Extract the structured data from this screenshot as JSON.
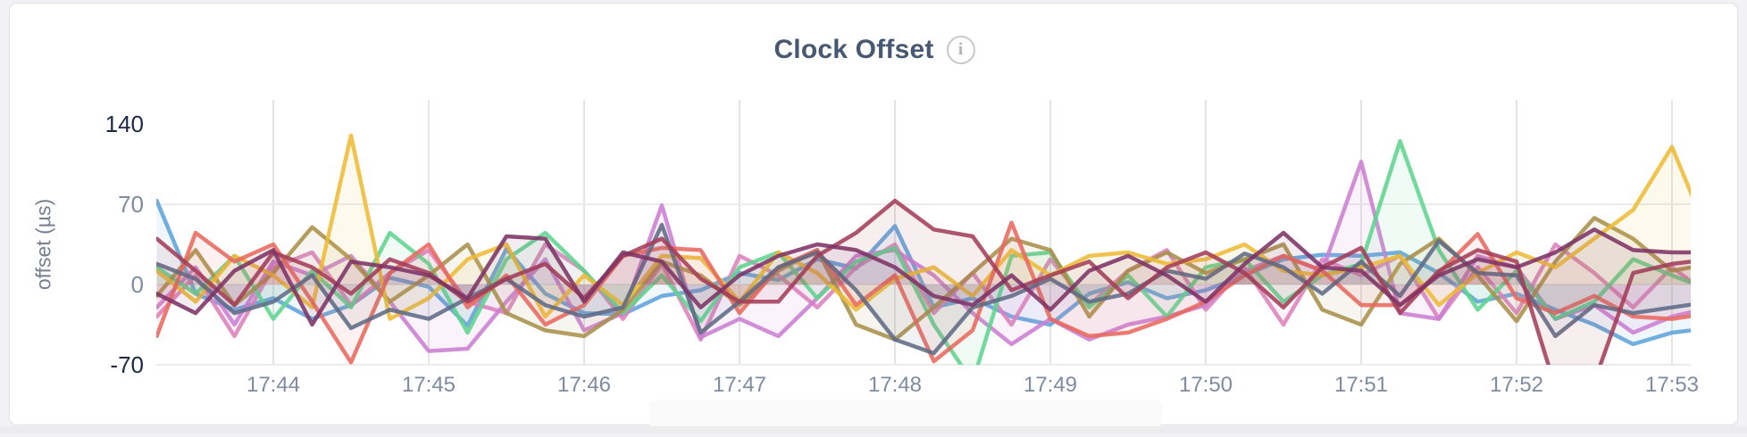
{
  "card": {
    "title": "Clock Offset",
    "info_icon_glyph": "i"
  },
  "chart_data": {
    "type": "line",
    "title": "Clock Offset",
    "xlabel": "",
    "ylabel": "offset (µs)",
    "grid": "on",
    "legend": "none",
    "area_fill": true,
    "ylim": [
      -70,
      140
    ],
    "xlim_minutes": [
      43.25,
      53.25
    ],
    "yticks": [
      {
        "label": "140",
        "value": 140,
        "emphasized": true
      },
      {
        "label": "70",
        "value": 70,
        "emphasized": false
      },
      {
        "label": "0",
        "value": 0,
        "emphasized": false
      },
      {
        "label": "-70",
        "value": -70,
        "emphasized": true
      }
    ],
    "xticks": [
      {
        "label": "17:44",
        "minute": 44
      },
      {
        "label": "17:45",
        "minute": 45
      },
      {
        "label": "17:46",
        "minute": 46
      },
      {
        "label": "17:47",
        "minute": 47
      },
      {
        "label": "17:48",
        "minute": 48
      },
      {
        "label": "17:49",
        "minute": 49
      },
      {
        "label": "17:50",
        "minute": 50
      },
      {
        "label": "17:51",
        "minute": 51
      },
      {
        "label": "17:52",
        "minute": 52
      },
      {
        "label": "17:53",
        "minute": 53
      }
    ],
    "x_minutes": [
      43.25,
      43.5,
      43.75,
      44,
      44.25,
      44.5,
      44.75,
      45,
      45.25,
      45.5,
      45.75,
      46,
      46.25,
      46.5,
      46.75,
      47,
      47.25,
      47.5,
      47.75,
      48,
      48.25,
      48.5,
      48.75,
      49,
      49.25,
      49.5,
      49.75,
      50,
      50.25,
      50.5,
      50.75,
      51,
      51.25,
      51.5,
      51.75,
      52,
      52.25,
      52.5,
      52.75,
      53,
      53.25
    ],
    "series": [
      {
        "name": "blue",
        "color": "#5DA3DC",
        "values": [
          73,
          -8,
          -22,
          -12,
          -30,
          -18,
          6,
          -2,
          -36,
          31,
          -8,
          -25,
          -26,
          -10,
          -5,
          10,
          4,
          22,
          14,
          51,
          -20,
          -12,
          -28,
          -35,
          -8,
          2,
          -12,
          -5,
          8,
          22,
          26,
          25,
          28,
          10,
          -15,
          -8,
          -22,
          -35,
          -52,
          -42,
          -38
        ]
      },
      {
        "name": "violet",
        "color": "#DD82BC",
        "values": [
          -28,
          8,
          -45,
          15,
          28,
          -18,
          10,
          30,
          -15,
          -25,
          35,
          12,
          -30,
          18,
          -48,
          25,
          8,
          -20,
          15,
          35,
          -25,
          10,
          -35,
          22,
          -18,
          12,
          30,
          -22,
          15,
          -35,
          22,
          8,
          25,
          -30,
          15,
          -25,
          35,
          10,
          -20,
          15,
          -10
        ]
      },
      {
        "name": "orchid",
        "color": "#CB7ED1",
        "values": [
          -20,
          15,
          -35,
          20,
          8,
          25,
          -15,
          -58,
          -56,
          -15,
          22,
          -40,
          -25,
          69,
          -46,
          -30,
          -45,
          -12,
          25,
          30,
          8,
          -25,
          -52,
          -30,
          -48,
          -35,
          -28,
          -18,
          12,
          25,
          12,
          107,
          -25,
          -30,
          25,
          15,
          -30,
          -18,
          -42,
          -28,
          -20
        ]
      },
      {
        "name": "green",
        "color": "#5FD48E",
        "values": [
          15,
          -8,
          25,
          -30,
          12,
          -20,
          45,
          18,
          -42,
          22,
          45,
          12,
          -25,
          8,
          -32,
          15,
          28,
          -12,
          20,
          32,
          -35,
          -85,
          25,
          28,
          -20,
          8,
          -28,
          15,
          22,
          -15,
          8,
          18,
          125,
          30,
          -22,
          12,
          -30,
          -15,
          22,
          8,
          -5
        ]
      },
      {
        "name": "olive",
        "color": "#A8904A",
        "values": [
          -10,
          30,
          -18,
          10,
          50,
          22,
          -15,
          8,
          35,
          -25,
          -40,
          -45,
          -22,
          20,
          8,
          -18,
          12,
          30,
          -35,
          -48,
          -20,
          10,
          40,
          30,
          -28,
          12,
          28,
          10,
          22,
          35,
          -22,
          -35,
          18,
          40,
          8,
          -32,
          20,
          58,
          40,
          12,
          18
        ]
      },
      {
        "name": "gold",
        "color": "#EDBB36",
        "values": [
          12,
          -15,
          25,
          8,
          -20,
          130,
          -30,
          -12,
          22,
          35,
          -28,
          8,
          -18,
          25,
          23,
          -15,
          28,
          10,
          -22,
          5,
          15,
          -10,
          30,
          8,
          25,
          28,
          18,
          22,
          35,
          12,
          8,
          15,
          25,
          -18,
          10,
          28,
          15,
          40,
          65,
          120,
          38
        ]
      },
      {
        "name": "coral",
        "color": "#E8695F",
        "values": [
          -45,
          45,
          20,
          35,
          -15,
          -68,
          10,
          35,
          -20,
          8,
          -35,
          -18,
          25,
          32,
          30,
          -25,
          15,
          30,
          -18,
          8,
          -67,
          -40,
          54,
          -30,
          -45,
          -42,
          -30,
          -15,
          8,
          25,
          12,
          -18,
          -18,
          10,
          44,
          -12,
          -25,
          -10,
          -28,
          -30,
          -25
        ]
      },
      {
        "name": "slate",
        "color": "#5F6B85",
        "values": [
          18,
          5,
          -25,
          -15,
          8,
          -38,
          -22,
          -30,
          -12,
          5,
          -18,
          -28,
          -20,
          52,
          -42,
          -15,
          15,
          28,
          -5,
          -48,
          -60,
          -20,
          -10,
          5,
          -15,
          -8,
          12,
          5,
          27,
          15,
          -8,
          20,
          -10,
          38,
          10,
          8,
          -45,
          -18,
          -25,
          -20,
          -15
        ]
      },
      {
        "name": "maroon",
        "color": "#A43D58",
        "values": [
          40,
          12,
          -18,
          28,
          15,
          -8,
          22,
          10,
          -15,
          5,
          18,
          -12,
          25,
          40,
          5,
          -15,
          -15,
          25,
          45,
          73,
          48,
          42,
          -5,
          8,
          20,
          -12,
          15,
          28,
          10,
          -20,
          15,
          32,
          -25,
          12,
          30,
          20,
          -90,
          -85,
          10,
          18,
          22
        ]
      },
      {
        "name": "plum",
        "color": "#7D3365",
        "values": [
          -8,
          -25,
          12,
          30,
          -35,
          20,
          15,
          8,
          -12,
          42,
          40,
          -15,
          28,
          20,
          -20,
          8,
          25,
          35,
          30,
          15,
          -10,
          -18,
          8,
          -22,
          12,
          25,
          8,
          -15,
          18,
          45,
          15,
          12,
          -18,
          8,
          22,
          15,
          28,
          48,
          30,
          28,
          28
        ]
      }
    ],
    "colors": {
      "grid_vertical": "#e4e4e4",
      "grid_horizontal": "#ececec",
      "tick_color_strong": "#1d2845",
      "tick_color": "#7e8ba1",
      "title_color": "#475872"
    }
  }
}
